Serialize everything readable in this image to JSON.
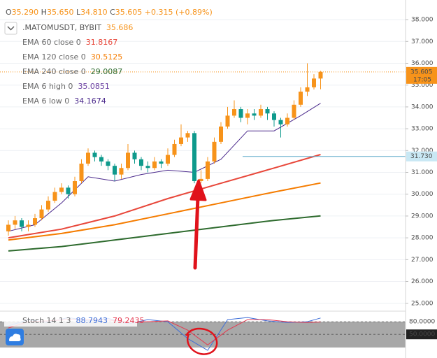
{
  "chart_data": {
    "type": "candlestick",
    "header": {
      "items": [
        {
          "label": "O",
          "value": "35.290"
        },
        {
          "label": "H",
          "value": "35.650"
        },
        {
          "label": "L",
          "value": "34.810"
        },
        {
          "label": "C",
          "value": "35.605"
        }
      ],
      "change": "+0.315 (+0.89%)"
    },
    "symbol": {
      "name": ".MATOMUSDT, BYBIT",
      "value": 35.686,
      "color": "#f7931a"
    },
    "up_color": "#f7931a",
    "down_color": "#0e9a8c",
    "open": [
      28.3,
      28.6,
      28.8,
      28.5,
      28.6,
      28.9,
      29.3,
      29.7,
      30.1,
      30.3,
      30.0,
      30.6,
      31.4,
      31.9,
      31.7,
      31.5,
      31.3,
      30.9,
      31.2,
      31.9,
      31.6,
      31.3,
      31.2,
      31.5,
      31.4,
      31.8,
      32.3,
      32.6,
      32.8,
      30.6,
      30.7,
      31.5,
      32.4,
      33.1,
      33.6,
      33.9,
      33.5,
      33.7,
      33.6,
      33.9,
      33.7,
      33.4,
      33.2,
      33.5,
      34.1,
      34.7,
      34.9,
      35.3
    ],
    "high": [
      28.8,
      29.0,
      28.9,
      28.8,
      29.1,
      29.5,
      29.9,
      30.3,
      30.5,
      30.4,
      30.8,
      31.6,
      32.1,
      32.0,
      31.8,
      31.6,
      31.4,
      31.4,
      32.3,
      32.0,
      31.7,
      31.5,
      31.7,
      31.6,
      32.1,
      32.5,
      33.2,
      32.9,
      32.9,
      31.1,
      31.7,
      32.6,
      33.3,
      34.0,
      34.3,
      34.0,
      33.9,
      33.9,
      34.1,
      34.0,
      33.8,
      33.5,
      33.7,
      34.3,
      34.9,
      36.0,
      35.5,
      35.65
    ],
    "low": [
      28.1,
      28.4,
      28.3,
      28.3,
      28.5,
      28.8,
      29.2,
      29.6,
      30.0,
      29.8,
      29.9,
      30.5,
      31.3,
      31.5,
      31.3,
      31.1,
      30.6,
      30.7,
      31.1,
      31.4,
      31.1,
      31.0,
      31.1,
      31.2,
      31.3,
      31.7,
      32.2,
      32.4,
      30.5,
      30.5,
      30.6,
      31.4,
      32.3,
      33.0,
      33.5,
      33.3,
      33.2,
      33.4,
      33.5,
      33.4,
      33.1,
      32.6,
      33.1,
      33.4,
      34.0,
      34.5,
      34.8,
      34.81
    ],
    "close": [
      28.6,
      28.8,
      28.5,
      28.6,
      28.9,
      29.3,
      29.7,
      30.1,
      30.3,
      30.0,
      30.6,
      31.4,
      31.9,
      31.7,
      31.5,
      31.3,
      30.9,
      31.2,
      31.9,
      31.6,
      31.3,
      31.2,
      31.5,
      31.4,
      31.8,
      32.3,
      32.6,
      32.8,
      30.6,
      30.7,
      31.5,
      32.4,
      33.1,
      33.6,
      33.9,
      33.5,
      33.7,
      33.6,
      33.9,
      33.7,
      33.4,
      33.2,
      33.5,
      34.1,
      34.7,
      34.9,
      35.3,
      35.605
    ],
    "indicators": [
      {
        "name": "EMA 60 close 0",
        "color": "#e8473a",
        "x": [
          0,
          8,
          16,
          24,
          32,
          40,
          47
        ],
        "values": [
          28.0,
          28.4,
          29.0,
          29.8,
          30.5,
          31.2,
          31.8167
        ]
      },
      {
        "name": "EMA 120 close 0",
        "color": "#f57c00",
        "x": [
          0,
          8,
          16,
          24,
          32,
          40,
          47
        ],
        "values": [
          27.9,
          28.2,
          28.6,
          29.1,
          29.6,
          30.1,
          30.5125
        ]
      },
      {
        "name": "EMA 240 close 0",
        "color": "#2e6b2e",
        "x": [
          0,
          8,
          16,
          24,
          32,
          40,
          47
        ],
        "values": [
          27.4,
          27.6,
          27.9,
          28.2,
          28.5,
          28.8,
          29.0087
        ]
      },
      {
        "name": "EMA 6 high 0",
        "color": "#6a3ea1",
        "value": 35.0851
      },
      {
        "name": "EMA 6 low 0",
        "color": "#4b2a8c",
        "x": [
          0,
          4,
          8,
          12,
          16,
          20,
          24,
          28,
          32,
          36,
          40,
          44,
          47
        ],
        "values": [
          28.3,
          28.6,
          29.6,
          30.8,
          30.6,
          30.9,
          31.1,
          31.0,
          31.6,
          32.9,
          32.9,
          33.6,
          34.1674
        ]
      }
    ],
    "last_price": 35.605,
    "countdown": "17:05",
    "marked_level": {
      "value": 31.73,
      "label": "31.730"
    },
    "ylim": [
      24.8,
      38.9
    ],
    "yticks": [
      {
        "value": 25,
        "label": "25.000"
      },
      {
        "value": 26,
        "label": "26.000"
      },
      {
        "value": 27,
        "label": "27.000"
      },
      {
        "value": 28,
        "label": "28.000"
      },
      {
        "value": 29,
        "label": "29.000"
      },
      {
        "value": 30,
        "label": "30.000"
      },
      {
        "value": 31,
        "label": "31.000"
      },
      {
        "value": 32,
        "label": "32.000"
      },
      {
        "value": 33,
        "label": "33.000"
      },
      {
        "value": 34,
        "label": "34.000"
      },
      {
        "value": 35,
        "label": "35.000"
      },
      {
        "value": 36,
        "label": "36.000"
      },
      {
        "value": 37,
        "label": "37.000"
      },
      {
        "value": 38,
        "label": "38.000"
      }
    ],
    "grid": true,
    "stoch": {
      "title": "Stoch 14 1 3",
      "ylim": [
        -6,
        105
      ],
      "yticks": [
        {
          "value": 80,
          "label": "80.0000"
        },
        {
          "value": 50,
          "label": "50.0000"
        }
      ],
      "series": [
        {
          "color": "#3f6fd8",
          "x": [
            0,
            3,
            6,
            9,
            12,
            15,
            18,
            21,
            24,
            27,
            30,
            33,
            36,
            39,
            42,
            45,
            47
          ],
          "values": [
            70,
            85,
            78,
            90,
            82,
            88,
            75,
            85,
            80,
            40,
            12,
            85,
            90,
            82,
            78,
            80,
            88.7943
          ]
        },
        {
          "color": "#e53950",
          "x": [
            0,
            3,
            6,
            9,
            12,
            15,
            18,
            21,
            24,
            27,
            30,
            33,
            36,
            39,
            42,
            45,
            47
          ],
          "values": [
            65,
            80,
            82,
            85,
            85,
            84,
            80,
            80,
            82,
            60,
            25,
            60,
            85,
            85,
            80,
            78,
            79.2435
          ]
        }
      ]
    }
  }
}
